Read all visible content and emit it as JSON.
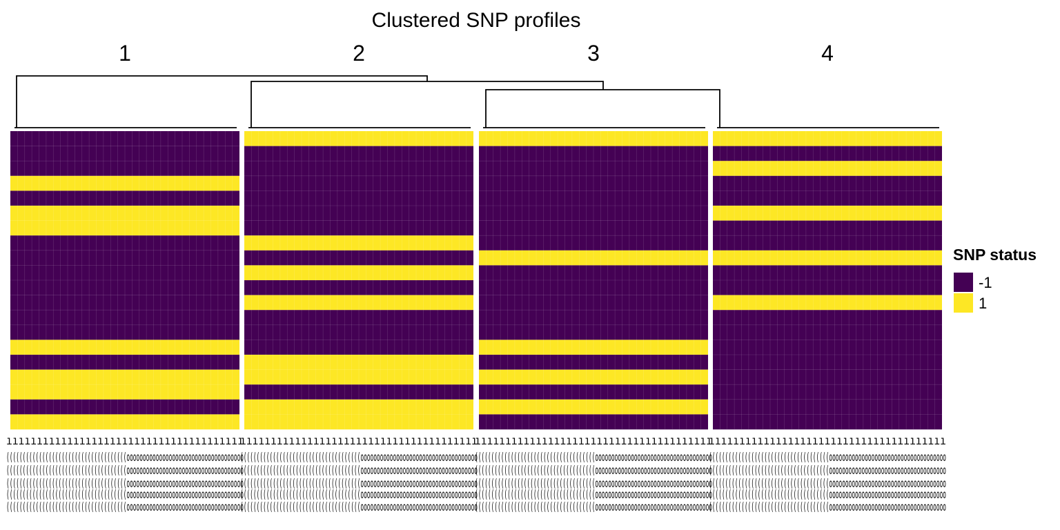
{
  "chart_data": {
    "type": "heatmap",
    "title": "Clustered SNP profiles",
    "column_groups": [
      "1",
      "2",
      "3",
      "4"
    ],
    "columns_per_group": 32,
    "n_rows": 20,
    "legend": {
      "title": "SNP status",
      "position": "right",
      "entries": [
        {
          "label": "-1",
          "value": -1,
          "color": "#440154"
        },
        {
          "label": "1",
          "value": 1,
          "color": "#FDE725"
        }
      ]
    },
    "groups": [
      {
        "name": "1",
        "rows": [
          -1,
          -1,
          -1,
          1,
          -1,
          1,
          1,
          -1,
          -1,
          -1,
          -1,
          -1,
          -1,
          -1,
          1,
          -1,
          1,
          1,
          -1,
          1
        ]
      },
      {
        "name": "2",
        "rows": [
          1,
          -1,
          -1,
          -1,
          -1,
          -1,
          -1,
          1,
          -1,
          1,
          -1,
          1,
          -1,
          -1,
          -1,
          1,
          1,
          -1,
          1,
          1
        ]
      },
      {
        "name": "3",
        "rows": [
          1,
          -1,
          -1,
          -1,
          -1,
          -1,
          -1,
          -1,
          1,
          -1,
          -1,
          -1,
          -1,
          -1,
          1,
          -1,
          1,
          -1,
          1,
          -1
        ]
      },
      {
        "name": "4",
        "rows": [
          1,
          -1,
          1,
          -1,
          -1,
          1,
          -1,
          -1,
          1,
          -1,
          -1,
          1,
          -1,
          -1,
          -1,
          -1,
          -1,
          -1,
          -1,
          -1
        ]
      }
    ],
    "dendrogram": "hierarchical: group 1 joins cluster of (2, (3, 4))"
  }
}
